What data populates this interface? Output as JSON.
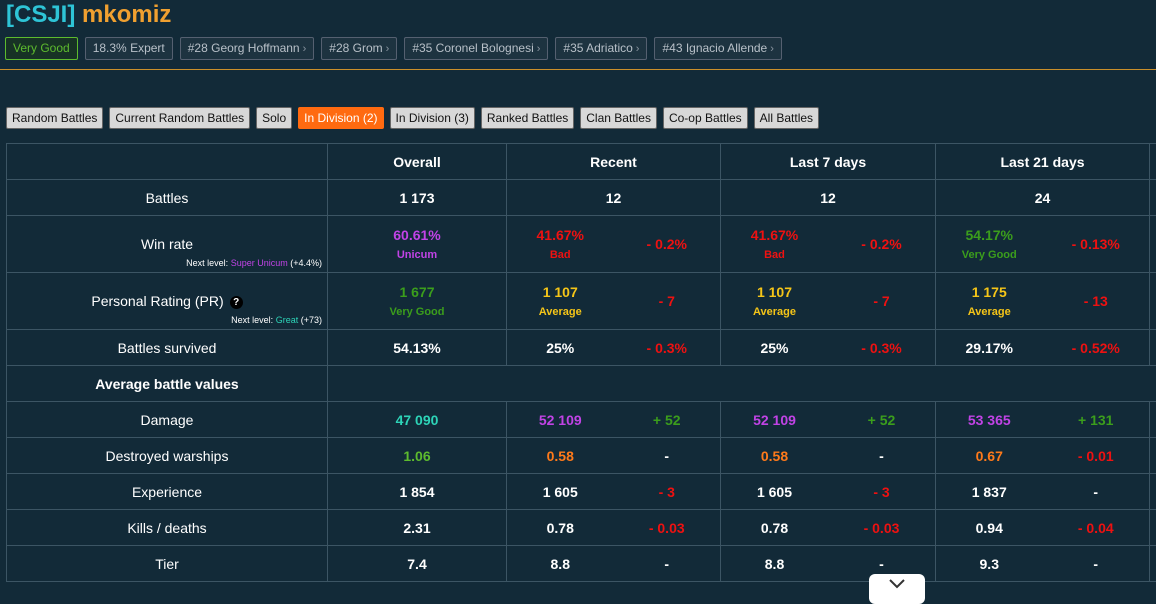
{
  "header": {
    "clan_tag": "[CSJI]",
    "player_name": "mkomiz"
  },
  "badges": [
    {
      "label": "Very Good"
    },
    {
      "label": "18.3% Expert"
    },
    {
      "label": "#28 Georg Hoffmann",
      "chev": "›"
    },
    {
      "label": "#28 Grom",
      "chev": "›"
    },
    {
      "label": "#35 Coronel Bolognesi",
      "chev": "›"
    },
    {
      "label": "#35 Adriatico",
      "chev": "›"
    },
    {
      "label": "#43 Ignacio Allende",
      "chev": "›"
    }
  ],
  "tabs": [
    {
      "label": "Random Battles"
    },
    {
      "label": "Current Random Battles"
    },
    {
      "label": "Solo"
    },
    {
      "label": "In Division (2)",
      "active": true
    },
    {
      "label": "In Division (3)"
    },
    {
      "label": "Ranked Battles"
    },
    {
      "label": "Clan Battles"
    },
    {
      "label": "Co-op Battles"
    },
    {
      "label": "All Battles"
    }
  ],
  "table": {
    "columns": [
      "Overall",
      "Recent",
      "Last 7 days",
      "Last 21 days"
    ],
    "battles": {
      "label": "Battles",
      "overall": "1 173",
      "recent": "12",
      "last7": "12",
      "last21": "24"
    },
    "winrate": {
      "label": "Win rate",
      "next_prefix": "Next level:",
      "next_level": "Super Unicum",
      "next_delta": "(+4.4%)",
      "overall": "60.61%",
      "overall_sub": "Unicum",
      "recent": "41.67%",
      "recent_sub": "Bad",
      "recent_delta": "- 0.2%",
      "last7": "41.67%",
      "last7_sub": "Bad",
      "last7_delta": "- 0.2%",
      "last21": "54.17%",
      "last21_sub": "Very Good",
      "last21_delta": "- 0.13%"
    },
    "pr": {
      "label": "Personal Rating (PR)",
      "help_icon": "?",
      "next_prefix": "Next level:",
      "next_level": "Great",
      "next_delta": "(+73)",
      "overall": "1 677",
      "overall_sub": "Very Good",
      "recent": "1 107",
      "recent_sub": "Average",
      "recent_delta": "- 7",
      "last7": "1 107",
      "last7_sub": "Average",
      "last7_delta": "- 7",
      "last21": "1 175",
      "last21_sub": "Average",
      "last21_delta": "- 13"
    },
    "survived": {
      "label": "Battles survived",
      "overall": "54.13%",
      "recent": "25%",
      "recent_delta": "- 0.3%",
      "last7": "25%",
      "last7_delta": "- 0.3%",
      "last21": "29.17%",
      "last21_delta": "- 0.52%"
    },
    "avg_section": "Average battle values",
    "damage": {
      "label": "Damage",
      "overall": "47 090",
      "recent": "52 109",
      "recent_delta": "+ 52",
      "last7": "52 109",
      "last7_delta": "+ 52",
      "last21": "53 365",
      "last21_delta": "+ 131"
    },
    "destroyed": {
      "label": "Destroyed warships",
      "overall": "1.06",
      "recent": "0.58",
      "recent_delta": "-",
      "last7": "0.58",
      "last7_delta": "-",
      "last21": "0.67",
      "last21_delta": "- 0.01"
    },
    "experience": {
      "label": "Experience",
      "overall": "1 854",
      "recent": "1 605",
      "recent_delta": "- 3",
      "last7": "1 605",
      "last7_delta": "- 3",
      "last21": "1 837",
      "last21_delta": "-"
    },
    "kd": {
      "label": "Kills / deaths",
      "overall": "2.31",
      "recent": "0.78",
      "recent_delta": "- 0.03",
      "last7": "0.78",
      "last7_delta": "- 0.03",
      "last21": "0.94",
      "last21_delta": "- 0.04"
    },
    "tier": {
      "label": "Tier",
      "overall": "7.4",
      "recent": "8.8",
      "recent_delta": "-",
      "last7": "8.8",
      "last7_delta": "-",
      "last21": "9.3",
      "last21_delta": "-"
    }
  },
  "scroll_button": {
    "icon": "chevron-down-icon"
  }
}
